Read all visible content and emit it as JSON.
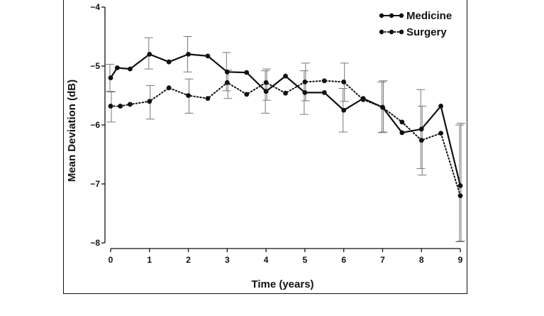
{
  "chart_data": {
    "type": "line",
    "title": "",
    "xlabel": "Time  (years)",
    "ylabel": "Mean Deviation (dB)",
    "xlim": [
      0,
      9
    ],
    "ylim": [
      -8,
      -4
    ],
    "xticks": [
      0,
      1,
      2,
      3,
      4,
      5,
      6,
      7,
      8,
      9
    ],
    "xtick_labels": [
      "0",
      "1",
      "2",
      "3",
      "4",
      "5",
      "6",
      "7",
      "8",
      "9"
    ],
    "yticks": [
      -8,
      -7,
      -6,
      -5,
      -4
    ],
    "ytick_labels": [
      "−8",
      "−7",
      "−6",
      "−5",
      "−4"
    ],
    "legend_position": "top-right",
    "series": [
      {
        "name": "Medicine",
        "line_style": "solid",
        "x": [
          0,
          0.17,
          0.5,
          1,
          1.5,
          2,
          2.5,
          3,
          3.5,
          4,
          4.5,
          5,
          5.5,
          6,
          6.5,
          7,
          7.5,
          8,
          8.5,
          9
        ],
        "y": [
          -5.2,
          -5.03,
          -5.05,
          -4.8,
          -4.93,
          -4.8,
          -4.83,
          -5.1,
          -5.11,
          -5.43,
          -5.17,
          -5.45,
          -5.45,
          -5.75,
          -5.55,
          -5.7,
          -6.13,
          -6.07,
          -5.68,
          -7.03
        ],
        "error_bars": [
          {
            "x": 0,
            "low": -5.43,
            "high": -4.97
          },
          {
            "x": 1,
            "low": -5.05,
            "high": -4.52
          },
          {
            "x": 2,
            "low": -5.1,
            "high": -4.5
          },
          {
            "x": 3,
            "low": -5.42,
            "high": -4.77
          },
          {
            "x": 4,
            "low": -5.8,
            "high": -5.08
          },
          {
            "x": 5,
            "low": -5.82,
            "high": -5.08
          },
          {
            "x": 6,
            "low": -6.12,
            "high": -5.38
          },
          {
            "x": 7,
            "low": -6.13,
            "high": -5.27
          },
          {
            "x": 8,
            "low": -6.74,
            "high": -5.4
          },
          {
            "x": 9,
            "low": -7.98,
            "high": -6.0
          }
        ]
      },
      {
        "name": "Surgery",
        "line_style": "dotted",
        "x": [
          0,
          0.25,
          0.5,
          1,
          1.5,
          2,
          2.5,
          3,
          3.5,
          4,
          4.5,
          5,
          5.5,
          6,
          6.5,
          7,
          7.5,
          8,
          8.5,
          9
        ],
        "y": [
          -5.68,
          -5.68,
          -5.65,
          -5.6,
          -5.37,
          -5.5,
          -5.55,
          -5.28,
          -5.48,
          -5.28,
          -5.46,
          -5.27,
          -5.25,
          -5.27,
          -5.57,
          -5.7,
          -5.95,
          -6.26,
          -6.14,
          -7.2
        ],
        "error_bars": [
          {
            "x": 0,
            "low": -5.95,
            "high": -5.44
          },
          {
            "x": 1,
            "low": -5.9,
            "high": -5.33
          },
          {
            "x": 2,
            "low": -5.8,
            "high": -5.22
          },
          {
            "x": 3,
            "low": -5.55,
            "high": -5.07
          },
          {
            "x": 4,
            "low": -5.58,
            "high": -5.05
          },
          {
            "x": 5,
            "low": -5.59,
            "high": -4.95
          },
          {
            "x": 6,
            "low": -5.6,
            "high": -4.95
          },
          {
            "x": 7,
            "low": -6.12,
            "high": -5.25
          },
          {
            "x": 8,
            "low": -6.85,
            "high": -5.68
          },
          {
            "x": 9,
            "low": -7.97,
            "high": -5.97
          }
        ]
      }
    ]
  }
}
